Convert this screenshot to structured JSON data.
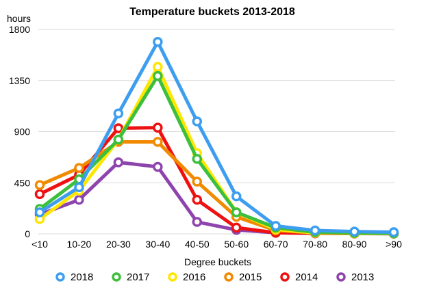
{
  "chart_data": {
    "type": "line",
    "title": "Temperature buckets 2013-2018",
    "ylabel": "hours",
    "xlabel": "Degree buckets",
    "categories": [
      "<10",
      "10-20",
      "20-30",
      "30-40",
      "40-50",
      "50-60",
      "60-70",
      "70-80",
      "80-90",
      ">90"
    ],
    "ylim": [
      0,
      1800
    ],
    "yticks": [
      0,
      450,
      900,
      1350,
      1800
    ],
    "grid": true,
    "legend_position": "bottom",
    "series": [
      {
        "name": "2013",
        "color": "#8e44ad",
        "values": [
          170,
          300,
          630,
          590,
          105,
          35,
          10,
          5,
          3,
          2
        ]
      },
      {
        "name": "2014",
        "color": "#ee1111",
        "values": [
          350,
          520,
          930,
          935,
          300,
          55,
          10,
          5,
          3,
          2
        ]
      },
      {
        "name": "2015",
        "color": "#f08a00",
        "values": [
          430,
          580,
          810,
          810,
          460,
          150,
          30,
          8,
          4,
          2
        ]
      },
      {
        "name": "2016",
        "color": "#ffe600",
        "values": [
          130,
          380,
          830,
          1470,
          710,
          190,
          40,
          10,
          5,
          3
        ]
      },
      {
        "name": "2017",
        "color": "#3cbf3c",
        "values": [
          220,
          480,
          830,
          1390,
          660,
          190,
          55,
          15,
          8,
          4
        ]
      },
      {
        "name": "2018",
        "color": "#3d9ef0",
        "values": [
          190,
          410,
          1060,
          1690,
          990,
          330,
          70,
          30,
          20,
          15
        ]
      }
    ],
    "legend_order": [
      "2018",
      "2017",
      "2016",
      "2015",
      "2014",
      "2013"
    ]
  }
}
